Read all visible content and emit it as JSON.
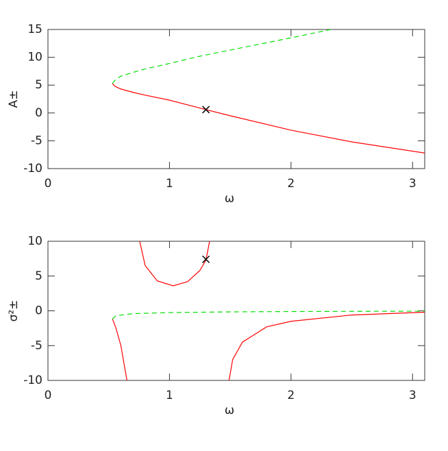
{
  "chart_data": [
    {
      "type": "line",
      "xlabel": "ω",
      "ylabel": "A±",
      "xlim": [
        0,
        3.1
      ],
      "ylim": [
        -10,
        15
      ],
      "xticks": [
        0,
        1,
        2,
        3
      ],
      "yticks": [
        -10,
        -5,
        0,
        5,
        10,
        15
      ],
      "series": [
        {
          "color": "#ff0000",
          "dash": false,
          "x": [
            0.53,
            0.55,
            0.6,
            0.7,
            0.8,
            1.0,
            1.3,
            1.5,
            2.0,
            2.5,
            3.1
          ],
          "values": [
            5.3,
            4.8,
            4.3,
            3.7,
            3.2,
            2.3,
            0.6,
            -0.5,
            -3.1,
            -5.2,
            -7.2
          ]
        },
        {
          "color": "#00dd00",
          "dash": true,
          "x": [
            0.53,
            0.56,
            0.6,
            0.7,
            0.8,
            1.0,
            1.25,
            1.5,
            1.75,
            2.0,
            2.33
          ],
          "values": [
            5.3,
            6.1,
            6.6,
            7.3,
            7.9,
            8.9,
            10.2,
            11.3,
            12.4,
            13.5,
            15
          ]
        }
      ],
      "markers": [
        {
          "x": 1.3,
          "y": 0.6
        }
      ]
    },
    {
      "type": "line",
      "xlabel": "ω",
      "ylabel": "σ²±",
      "xlim": [
        0,
        3.1
      ],
      "ylim": [
        -10,
        10
      ],
      "xticks": [
        0,
        1,
        2,
        3
      ],
      "yticks": [
        -10,
        -5,
        0,
        5,
        10
      ],
      "series": [
        {
          "color": "#ff0000",
          "dash": false,
          "x": [
            0.755,
            0.8,
            0.9,
            1.03,
            1.15,
            1.25,
            1.3,
            1.33,
            null,
            0.53,
            0.56,
            0.6,
            0.63,
            0.65,
            null,
            1.49,
            1.52,
            1.6,
            1.8,
            2.0,
            2.5,
            3.1
          ],
          "values": [
            10,
            6.5,
            4.3,
            3.6,
            4.2,
            5.8,
            7.3,
            10,
            null,
            -1.1,
            -2.5,
            -5,
            -8,
            -10,
            null,
            -10,
            -7,
            -4.5,
            -2.3,
            -1.5,
            -0.6,
            -0.2
          ]
        },
        {
          "color": "#00dd00",
          "dash": true,
          "x": [
            0.53,
            0.56,
            0.7,
            1.0,
            1.5,
            2.0,
            3.1
          ],
          "values": [
            -1.2,
            -0.7,
            -0.4,
            -0.25,
            -0.15,
            -0.1,
            -0.05
          ]
        }
      ],
      "markers": [
        {
          "x": 1.3,
          "y": 7.4
        }
      ]
    }
  ]
}
